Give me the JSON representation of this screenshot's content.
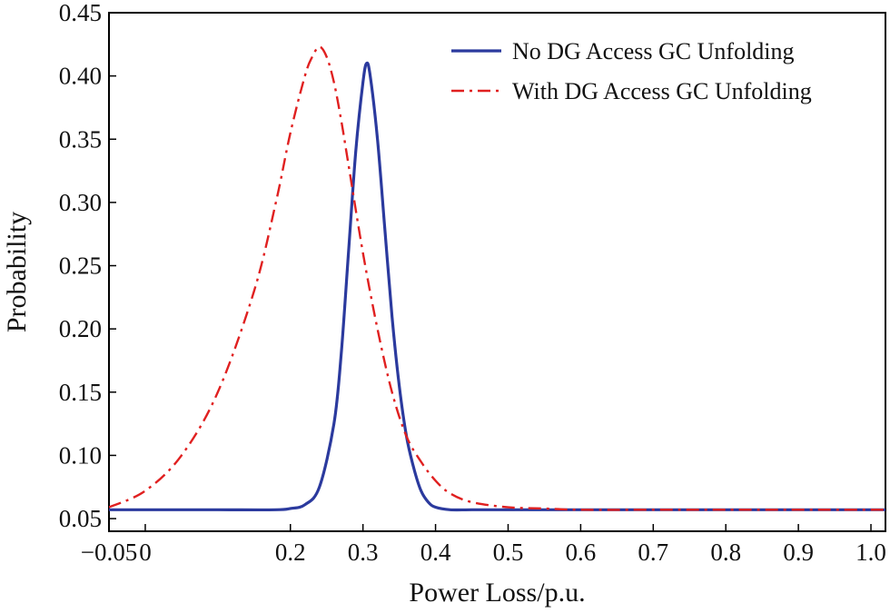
{
  "chart_data": {
    "type": "line",
    "xlabel": "Power Loss/p.u.",
    "ylabel": "Probability",
    "xlim": [
      -0.05,
      1.02
    ],
    "ylim": [
      0.04,
      0.45
    ],
    "xticks": [
      -0.05,
      0,
      0.2,
      0.3,
      0.4,
      0.5,
      0.6,
      0.7,
      0.8,
      0.9,
      1.0
    ],
    "xtick_labels": [
      "−0.05",
      "0",
      "0.2",
      "0.3",
      "0.4",
      "0.5",
      "0.6",
      "0.7",
      "0.8",
      "0.9",
      "1.0"
    ],
    "yticks": [
      0.05,
      0.1,
      0.15,
      0.2,
      0.25,
      0.3,
      0.35,
      0.4,
      0.45
    ],
    "ytick_labels": [
      "0.05",
      "0.10",
      "0.15",
      "0.20",
      "0.25",
      "0.30",
      "0.35",
      "0.40",
      "0.45"
    ],
    "grid": false,
    "legend_position": "top-right",
    "series": [
      {
        "name": "No DG Access GC Unfolding",
        "color": "#2b3a9e",
        "style": "solid",
        "x": [
          -0.05,
          0.0,
          0.1,
          0.18,
          0.2,
          0.22,
          0.24,
          0.26,
          0.27,
          0.28,
          0.29,
          0.3,
          0.305,
          0.31,
          0.32,
          0.33,
          0.34,
          0.35,
          0.36,
          0.37,
          0.38,
          0.39,
          0.4,
          0.42,
          0.45,
          0.5,
          0.6,
          0.8,
          1.02
        ],
        "y": [
          0.057,
          0.057,
          0.057,
          0.057,
          0.058,
          0.061,
          0.075,
          0.125,
          0.18,
          0.26,
          0.34,
          0.395,
          0.41,
          0.4,
          0.35,
          0.28,
          0.21,
          0.155,
          0.115,
          0.09,
          0.072,
          0.063,
          0.059,
          0.057,
          0.057,
          0.057,
          0.057,
          0.057,
          0.057
        ]
      },
      {
        "name": "With DG Access GC Unfolding",
        "color": "#e02020",
        "style": "dashdot",
        "x": [
          -0.05,
          0.0,
          0.05,
          0.1,
          0.15,
          0.18,
          0.2,
          0.22,
          0.23,
          0.24,
          0.25,
          0.26,
          0.27,
          0.28,
          0.3,
          0.32,
          0.34,
          0.36,
          0.38,
          0.4,
          0.42,
          0.45,
          0.5,
          0.55,
          0.6,
          0.7,
          0.8,
          1.02
        ],
        "y": [
          0.059,
          0.072,
          0.1,
          0.15,
          0.23,
          0.3,
          0.355,
          0.4,
          0.415,
          0.423,
          0.415,
          0.395,
          0.365,
          0.33,
          0.26,
          0.2,
          0.15,
          0.115,
          0.095,
          0.08,
          0.07,
          0.063,
          0.059,
          0.058,
          0.057,
          0.057,
          0.057,
          0.057
        ]
      }
    ]
  }
}
